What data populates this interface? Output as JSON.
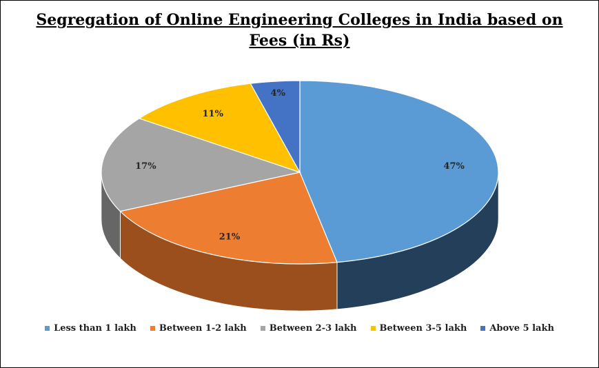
{
  "chart_data": {
    "type": "pie",
    "title_lines": [
      "Segregation of Online Engineering Colleges in India based on",
      "Fees (in Rs)"
    ],
    "slices": [
      {
        "label": "Less than 1 lakh",
        "value": 47,
        "data_label": "47%",
        "color": "#5b9bd5",
        "side_color": "#243f5a"
      },
      {
        "label": "Between 1-2 lakh",
        "value": 21,
        "data_label": "21%",
        "color": "#ed7d31",
        "side_color": "#9a4f1c"
      },
      {
        "label": "Between 2-3 lakh",
        "value": 17,
        "data_label": "17%",
        "color": "#a5a5a5",
        "side_color": "#666666"
      },
      {
        "label": "Between 3-5 lakh",
        "value": 11,
        "data_label": "11%",
        "color": "#ffc000",
        "side_color": "#a67c00"
      },
      {
        "label": "Above 5 lakh",
        "value": 4,
        "data_label": "4%",
        "color": "#4472c4",
        "side_color": "#2a477a"
      }
    ],
    "legend_position": "bottom",
    "style": "3d"
  }
}
